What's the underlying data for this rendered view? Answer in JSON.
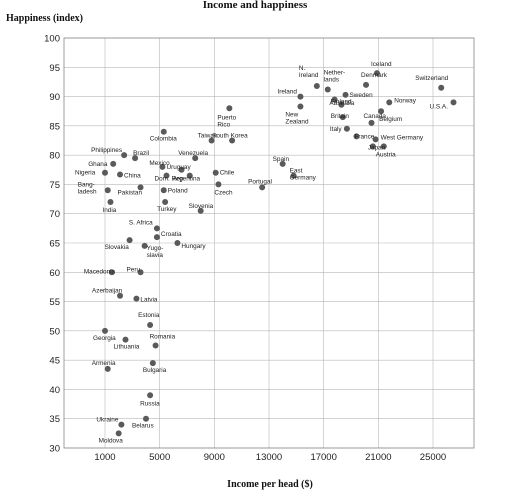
{
  "chart_data": {
    "type": "scatter",
    "title": "Income and happiness",
    "xlabel": "Income per head ($)",
    "ylabel": "Happiness (index)",
    "xlim": [
      -2000,
      28000
    ],
    "ylim": [
      30,
      100
    ],
    "xticks": [
      1000,
      5000,
      9000,
      13000,
      17000,
      21000,
      25000
    ],
    "yticks": [
      30,
      35,
      40,
      45,
      50,
      55,
      60,
      65,
      70,
      75,
      80,
      85,
      90,
      95,
      100
    ],
    "grid": true,
    "points": [
      {
        "label": "Iceland",
        "x": 20900,
        "y": 94
      },
      {
        "label": "N. Ireland",
        "x": 16500,
        "y": 91.8
      },
      {
        "label": "Nether- lands",
        "x": 17300,
        "y": 91.2
      },
      {
        "label": "Denmark",
        "x": 20100,
        "y": 92
      },
      {
        "label": "Switzerland",
        "x": 25600,
        "y": 91.5
      },
      {
        "label": "Ireland",
        "x": 15300,
        "y": 90
      },
      {
        "label": "Finland",
        "x": 17800,
        "y": 89.5
      },
      {
        "label": "Sweden",
        "x": 18600,
        "y": 90.3
      },
      {
        "label": "Norway",
        "x": 21800,
        "y": 89
      },
      {
        "label": "U.S.A.",
        "x": 26500,
        "y": 89
      },
      {
        "label": "New Zealand",
        "x": 15300,
        "y": 88.3
      },
      {
        "label": "Australia",
        "x": 18300,
        "y": 88.6
      },
      {
        "label": "Belgium",
        "x": 21200,
        "y": 87.5
      },
      {
        "label": "Puerto Rico",
        "x": 10100,
        "y": 88
      },
      {
        "label": "Britain",
        "x": 18400,
        "y": 86.5
      },
      {
        "label": "Canada",
        "x": 20500,
        "y": 85.5
      },
      {
        "label": "Italy",
        "x": 18700,
        "y": 84.5
      },
      {
        "label": "West Germany",
        "x": 20800,
        "y": 82.7
      },
      {
        "label": "France",
        "x": 19400,
        "y": 83.2
      },
      {
        "label": "Japan",
        "x": 20600,
        "y": 81.5
      },
      {
        "label": "Austria",
        "x": 21400,
        "y": 81.5
      },
      {
        "label": "Colombia",
        "x": 5300,
        "y": 84
      },
      {
        "label": "Taiwan",
        "x": 8800,
        "y": 82.5
      },
      {
        "label": "South Korea",
        "x": 10300,
        "y": 82.5
      },
      {
        "label": "Philippines",
        "x": 2400,
        "y": 80
      },
      {
        "label": "Brazil",
        "x": 3200,
        "y": 79.5
      },
      {
        "label": "Venezuela",
        "x": 7600,
        "y": 79.5
      },
      {
        "label": "Spain",
        "x": 14000,
        "y": 78.5
      },
      {
        "label": "Ghana",
        "x": 1600,
        "y": 78.5
      },
      {
        "label": "Mexico",
        "x": 5200,
        "y": 78
      },
      {
        "label": "Uruguay",
        "x": 6600,
        "y": 77.5
      },
      {
        "label": "East Germany",
        "x": 14800,
        "y": 76.5
      },
      {
        "label": "Nigeria",
        "x": 1000,
        "y": 77
      },
      {
        "label": "China",
        "x": 2100,
        "y": 76.7
      },
      {
        "label": "Dom. Rep.",
        "x": 5500,
        "y": 76.5
      },
      {
        "label": "Argentina",
        "x": 7200,
        "y": 76.5
      },
      {
        "label": "Chile",
        "x": 9100,
        "y": 77
      },
      {
        "label": "Portugal",
        "x": 12500,
        "y": 74.5
      },
      {
        "label": "Bang- ladesh",
        "x": 1200,
        "y": 74
      },
      {
        "label": "Pakistan",
        "x": 3600,
        "y": 74.5
      },
      {
        "label": "Poland",
        "x": 5300,
        "y": 74
      },
      {
        "label": "Czech",
        "x": 9300,
        "y": 75
      },
      {
        "label": "India",
        "x": 1400,
        "y": 72
      },
      {
        "label": "Turkey",
        "x": 5400,
        "y": 72
      },
      {
        "label": "Slovenia",
        "x": 8000,
        "y": 70.5
      },
      {
        "label": "S. Africa",
        "x": 4800,
        "y": 67.5
      },
      {
        "label": "Croatia",
        "x": 4800,
        "y": 66
      },
      {
        "label": "Slovakia",
        "x": 2800,
        "y": 65.5
      },
      {
        "label": "Yugo- slavia",
        "x": 3900,
        "y": 64.5
      },
      {
        "label": "Hungary",
        "x": 6300,
        "y": 65
      },
      {
        "label": "Macedonia",
        "x": 1500,
        "y": 60
      },
      {
        "label": "Peru",
        "x": 3600,
        "y": 60
      },
      {
        "label": "Azerbaijan",
        "x": 2100,
        "y": 56
      },
      {
        "label": "Latvia",
        "x": 3300,
        "y": 55.5
      },
      {
        "label": "Estonia",
        "x": 4300,
        "y": 51
      },
      {
        "label": "Georgia",
        "x": 1000,
        "y": 50
      },
      {
        "label": "Romania",
        "x": 4700,
        "y": 47.5
      },
      {
        "label": "Lithuania",
        "x": 2500,
        "y": 48.5
      },
      {
        "label": "Armenia",
        "x": 1200,
        "y": 43.5
      },
      {
        "label": "Bulgaria",
        "x": 4500,
        "y": 44.5
      },
      {
        "label": "Russia",
        "x": 4300,
        "y": 39
      },
      {
        "label": "Ukraine",
        "x": 2200,
        "y": 34
      },
      {
        "label": "Belarus",
        "x": 4000,
        "y": 35
      },
      {
        "label": "Moldova",
        "x": 2000,
        "y": 32.5
      }
    ]
  }
}
